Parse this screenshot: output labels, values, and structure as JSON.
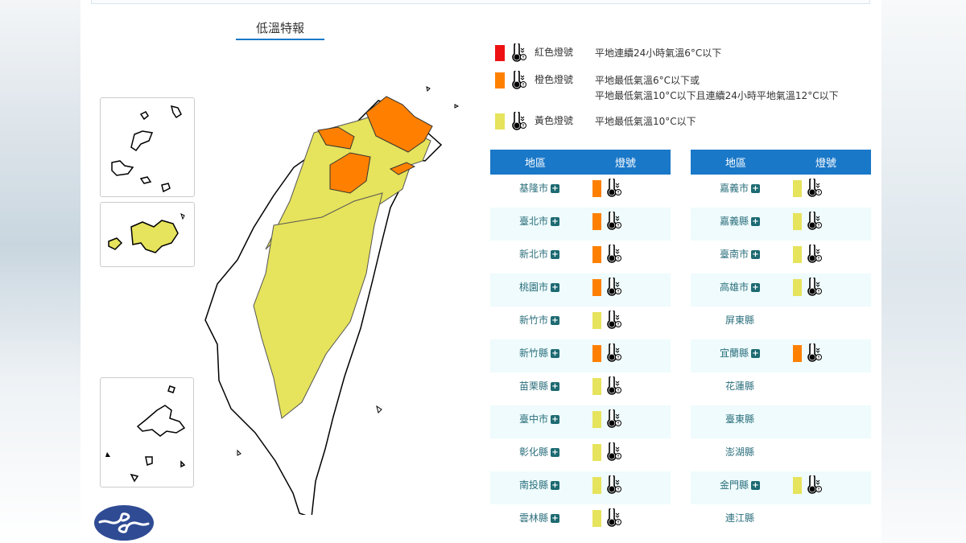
{
  "title": "低溫特報",
  "colors": {
    "red": "#ee1111",
    "orange": "#ff8000",
    "yellow": "#e6e35c",
    "header": "#1a78c8"
  },
  "legend": [
    {
      "level": "red",
      "name": "紅色燈號",
      "desc": [
        "平地連續24小時氣溫6°C以下"
      ],
      "icon": "thermometer-icon"
    },
    {
      "level": "orange",
      "name": "橙色燈號",
      "desc": [
        "平地最低氣溫6°C以下或",
        "平地最低氣溫10°C以下且連續24小時平地氣溫12°C以下"
      ],
      "icon": "thermometer-icon"
    },
    {
      "level": "yellow",
      "name": "黃色燈號",
      "desc": [
        "平地最低氣溫10°C以下"
      ],
      "icon": "thermometer-icon"
    }
  ],
  "table_headers": {
    "region": "地區",
    "signal": "燈號"
  },
  "left_table": [
    {
      "name": "基隆市",
      "level": "orange"
    },
    {
      "name": "臺北市",
      "level": "orange"
    },
    {
      "name": "新北市",
      "level": "orange"
    },
    {
      "name": "桃園市",
      "level": "orange"
    },
    {
      "name": "新竹市",
      "level": "yellow"
    },
    {
      "name": "新竹縣",
      "level": "orange"
    },
    {
      "name": "苗栗縣",
      "level": "yellow"
    },
    {
      "name": "臺中市",
      "level": "yellow"
    },
    {
      "name": "彰化縣",
      "level": "yellow"
    },
    {
      "name": "南投縣",
      "level": "yellow"
    },
    {
      "name": "雲林縣",
      "level": "yellow"
    }
  ],
  "right_table": [
    {
      "name": "嘉義市",
      "level": "yellow"
    },
    {
      "name": "嘉義縣",
      "level": "yellow"
    },
    {
      "name": "臺南市",
      "level": "yellow"
    },
    {
      "name": "高雄市",
      "level": "yellow"
    },
    {
      "name": "屏東縣",
      "level": ""
    },
    {
      "name": "宜蘭縣",
      "level": "orange"
    },
    {
      "name": "花蓮縣",
      "level": ""
    },
    {
      "name": "臺東縣",
      "level": ""
    },
    {
      "name": "澎湖縣",
      "level": ""
    },
    {
      "name": "金門縣",
      "level": "yellow"
    },
    {
      "name": "連江縣",
      "level": ""
    }
  ]
}
